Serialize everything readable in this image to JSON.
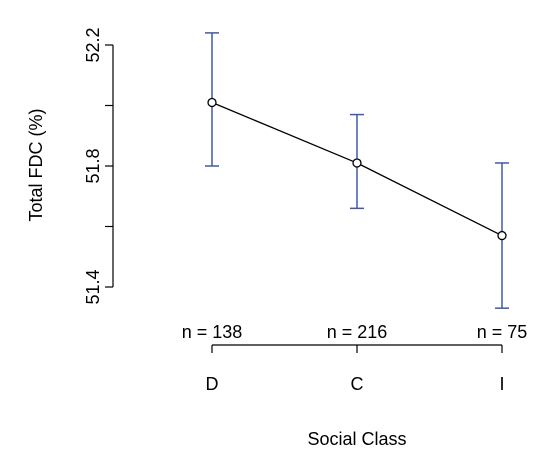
{
  "chart_data": {
    "type": "line",
    "title": "",
    "xlabel": "Social Class",
    "ylabel": "Total FDC (%)",
    "categories": [
      "D",
      "C",
      "I"
    ],
    "ylim": [
      51.4,
      52.2
    ],
    "yticks": [
      "51.4",
      "51.8",
      "52.2"
    ],
    "yticks_minor": [
      51.6,
      52.0
    ],
    "series": [
      {
        "values": [
          52.01,
          51.81,
          51.57
        ],
        "error_low": [
          51.8,
          51.66,
          51.33
        ],
        "error_high": [
          52.24,
          51.97,
          51.81
        ],
        "counts": [
          "n = 138",
          "n = 216",
          "n = 75"
        ]
      }
    ],
    "grid": false,
    "legend": "none",
    "line_color": "#000000",
    "errorbar_color": "#3f5aa8"
  }
}
